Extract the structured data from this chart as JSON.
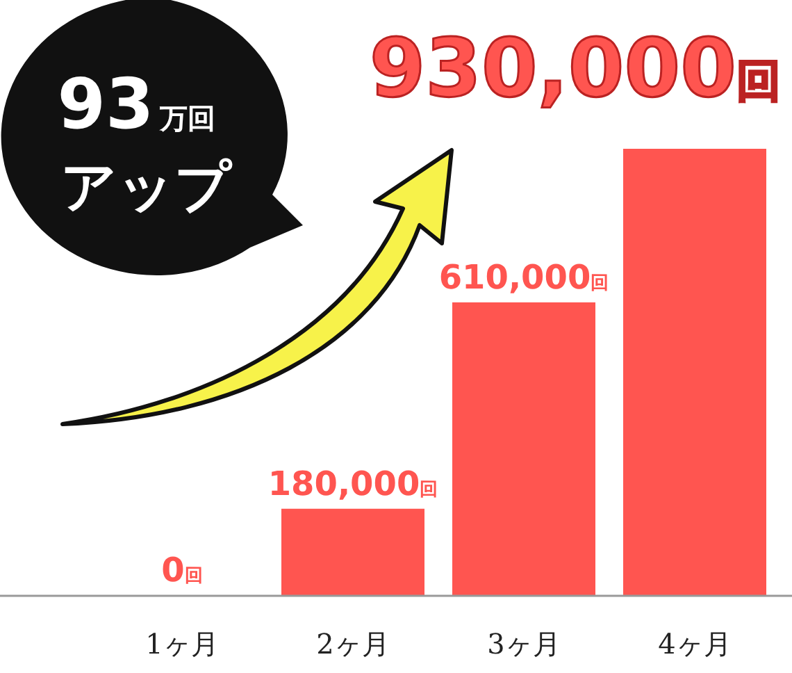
{
  "chart_data": {
    "type": "bar",
    "categories": [
      "1ヶ月",
      "2ヶ月",
      "3ヶ月",
      "4ヶ月"
    ],
    "values": [
      0,
      180000,
      610000,
      930000
    ],
    "value_labels": [
      "0回",
      "180,000回",
      "610,000回",
      "930,000回"
    ],
    "color": "#ff5550",
    "ylim": [
      0,
      930000
    ],
    "annotations": [
      "93万回",
      "アップ"
    ]
  }
}
